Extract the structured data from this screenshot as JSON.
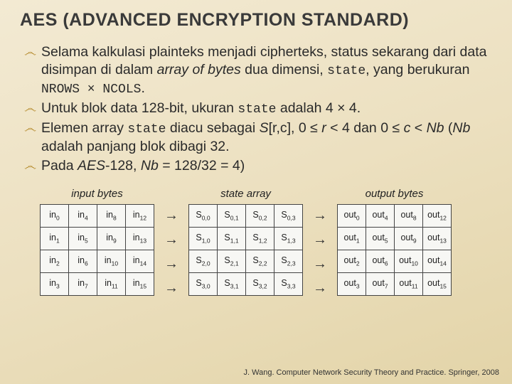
{
  "title": "AES (ADVANCED ENCRYPTION STANDARD)",
  "bullet_glyph": "෴",
  "bullets": {
    "b1_pre": "Selama kalkulasi plainteks menjadi cipherteks, status sekarang dari data disimpan di dalam ",
    "b1_arrayof": "array of bytes",
    "b1_mid": " dua dimensi, ",
    "b1_state": "state",
    "b1_mid2": ", yang berukuran ",
    "b1_dim": "NROWS × NCOLS",
    "b1_end": ".",
    "b2_pre": "Untuk blok data 128-bit, ukuran ",
    "b2_state": "state",
    "b2_end": " adalah 4 × 4.",
    "b3_pre": "Elemen array ",
    "b3_state": "state",
    "b3_mid": " diacu sebagai ",
    "b3_src": "S",
    "b3_rc": "[r,c], 0 ≤ ",
    "b3_r": "r",
    "b3_mid2": " < 4 dan 0 ≤ ",
    "b3_c": "c",
    "b3_end": " < ",
    "b3_nb": "Nb",
    "b3_par1": " (",
    "b3_nb2": "Nb",
    "b3_par2": " adalah panjang blok dibagi 32.",
    "b4_pre": "Pada ",
    "b4_aes": "AES",
    "b4_mid": "-128, ",
    "b4_nb": "Nb",
    "b4_end": " = 128/32 = 4)"
  },
  "diagram": {
    "headers": {
      "in": "input bytes",
      "state": "state array",
      "out": "output bytes"
    },
    "arrow": "→",
    "in": [
      [
        [
          "in",
          "0"
        ],
        [
          "in",
          "4"
        ],
        [
          "in",
          "8"
        ],
        [
          "in",
          "12"
        ]
      ],
      [
        [
          "in",
          "1"
        ],
        [
          "in",
          "5"
        ],
        [
          "in",
          "9"
        ],
        [
          "in",
          "13"
        ]
      ],
      [
        [
          "in",
          "2"
        ],
        [
          "in",
          "6"
        ],
        [
          "in",
          "10"
        ],
        [
          "in",
          "14"
        ]
      ],
      [
        [
          "in",
          "3"
        ],
        [
          "in",
          "7"
        ],
        [
          "in",
          "11"
        ],
        [
          "in",
          "15"
        ]
      ]
    ],
    "state": [
      [
        [
          "S",
          "0,0"
        ],
        [
          "S",
          "0,1"
        ],
        [
          "S",
          "0,2"
        ],
        [
          "S",
          "0,3"
        ]
      ],
      [
        [
          "S",
          "1,0"
        ],
        [
          "S",
          "1,1"
        ],
        [
          "S",
          "1,2"
        ],
        [
          "S",
          "1,3"
        ]
      ],
      [
        [
          "S",
          "2,0"
        ],
        [
          "S",
          "2,1"
        ],
        [
          "S",
          "2,2"
        ],
        [
          "S",
          "2,3"
        ]
      ],
      [
        [
          "S",
          "3,0"
        ],
        [
          "S",
          "3,1"
        ],
        [
          "S",
          "3,2"
        ],
        [
          "S",
          "3,3"
        ]
      ]
    ],
    "out": [
      [
        [
          "out",
          "0"
        ],
        [
          "out",
          "4"
        ],
        [
          "out",
          "8"
        ],
        [
          "out",
          "12"
        ]
      ],
      [
        [
          "out",
          "1"
        ],
        [
          "out",
          "5"
        ],
        [
          "out",
          "9"
        ],
        [
          "out",
          "13"
        ]
      ],
      [
        [
          "out",
          "2"
        ],
        [
          "out",
          "6"
        ],
        [
          "out",
          "10"
        ],
        [
          "out",
          "14"
        ]
      ],
      [
        [
          "out",
          "3"
        ],
        [
          "out",
          "7"
        ],
        [
          "out",
          "11"
        ],
        [
          "out",
          "15"
        ]
      ]
    ]
  },
  "footer": "J. Wang. Computer Network Security Theory and Practice. Springer, 2008"
}
